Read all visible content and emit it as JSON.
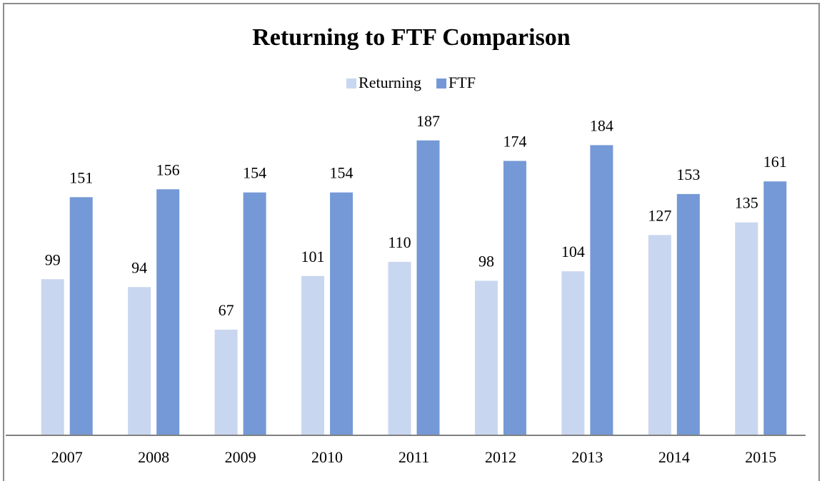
{
  "chart_data": {
    "type": "bar",
    "title": "Returning to FTF Comparison",
    "categories": [
      "2007",
      "2008",
      "2009",
      "2010",
      "2011",
      "2012",
      "2013",
      "2014",
      "2015"
    ],
    "series": [
      {
        "name": "Returning",
        "color": "#c9d6ef",
        "values": [
          99,
          94,
          67,
          101,
          110,
          98,
          104,
          127,
          135
        ]
      },
      {
        "name": "FTF",
        "color": "#7599d6",
        "values": [
          151,
          156,
          154,
          154,
          187,
          174,
          184,
          153,
          161
        ]
      }
    ],
    "ylim": [
      0,
      200
    ],
    "legend": "top"
  }
}
